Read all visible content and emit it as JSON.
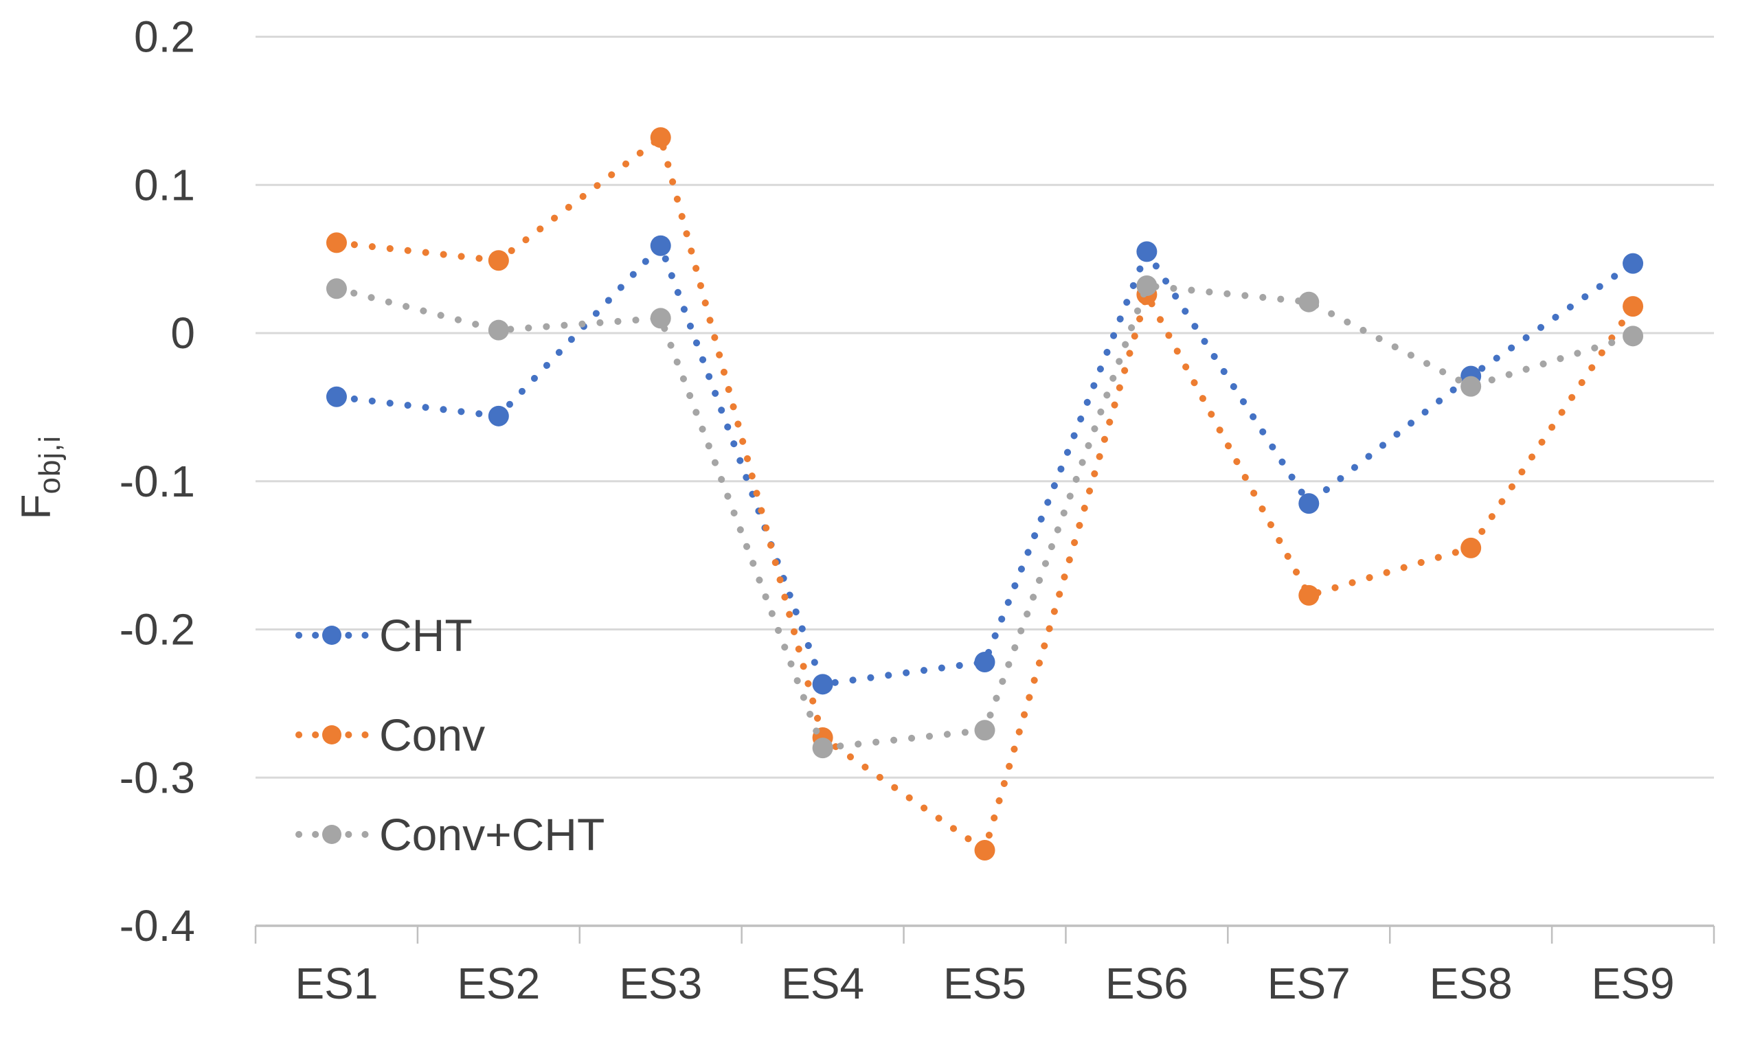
{
  "chart_data": {
    "type": "line",
    "title": "",
    "xlabel": "",
    "ylabel": "F_obj,i",
    "ylabel_main": "F",
    "ylabel_sub": "obj,i",
    "line_style": "dotted",
    "marker": "circle",
    "grid": true,
    "legend_position": "inside-bottom-left",
    "categories": [
      "ES1",
      "ES2",
      "ES3",
      "ES4",
      "ES5",
      "ES6",
      "ES7",
      "ES8",
      "ES9"
    ],
    "series": [
      {
        "name": "CHT",
        "color": "#4472C4",
        "values": [
          -0.043,
          -0.056,
          0.059,
          -0.237,
          -0.222,
          0.055,
          -0.115,
          -0.029,
          0.047
        ]
      },
      {
        "name": "Conv",
        "color": "#ED7D31",
        "values": [
          0.061,
          0.049,
          0.132,
          -0.273,
          -0.349,
          0.026,
          -0.177,
          -0.145,
          0.018
        ]
      },
      {
        "name": "Conv+CHT",
        "color": "#A5A5A5",
        "values": [
          0.03,
          0.002,
          0.01,
          -0.28,
          -0.268,
          0.032,
          0.021,
          -0.036,
          -0.002
        ]
      }
    ],
    "ylim": [
      -0.4,
      0.2
    ],
    "yticks": [
      0.2,
      0.1,
      0,
      -0.1,
      -0.2,
      -0.3,
      -0.4
    ],
    "ytick_labels": [
      "0.2",
      "0.1",
      "0",
      "-0.1",
      "-0.2",
      "-0.3",
      "-0.4"
    ]
  },
  "colors": {
    "gridline": "#D9D9D9",
    "axis_line": "#BFBFBF",
    "text": "#404040",
    "background": "#FFFFFF"
  }
}
